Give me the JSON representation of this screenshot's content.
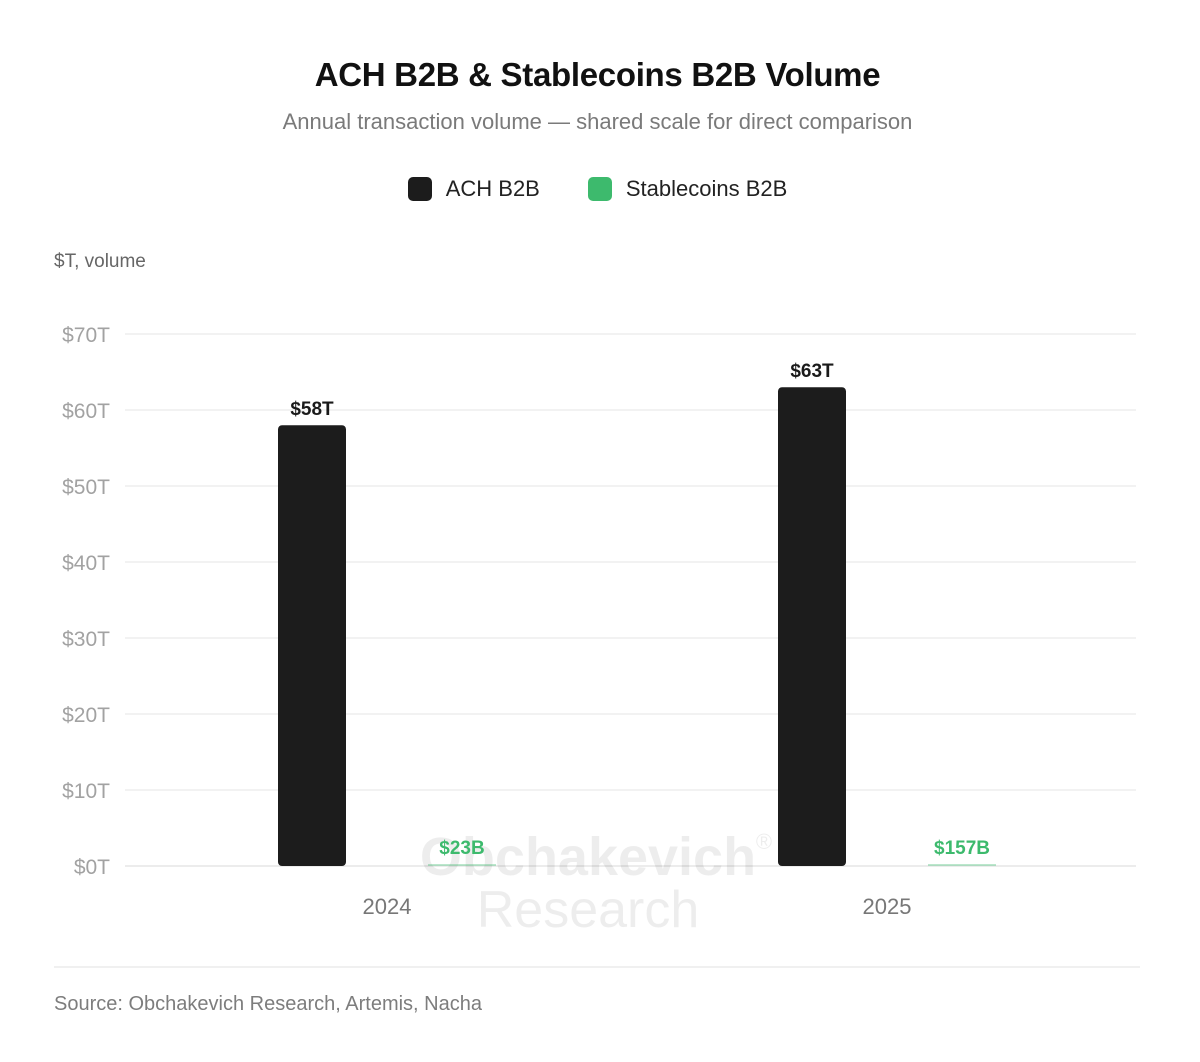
{
  "chart_data": {
    "type": "bar",
    "title": "ACH B2B & Stablecoins B2B Volume",
    "subtitle": "Annual transaction volume — shared scale for direct comparison",
    "ylabel": "$T, volume",
    "categories": [
      "2024",
      "2025"
    ],
    "series": [
      {
        "name": "ACH B2B",
        "color": "#1c1c1c",
        "values": [
          58,
          63
        ],
        "labels": [
          "$58T",
          "$63T"
        ]
      },
      {
        "name": "Stablecoins B2B",
        "color": "#3dba6d",
        "values": [
          0.023,
          0.157
        ],
        "labels": [
          "$23B",
          "$157B"
        ]
      }
    ],
    "ylim": [
      0,
      70
    ],
    "yticks": [
      "$0T",
      "$10T",
      "$20T",
      "$30T",
      "$40T",
      "$50T",
      "$60T",
      "$70T"
    ],
    "grid": true,
    "legend": "top-center"
  },
  "watermark": {
    "line1": "Obchakevich",
    "line2": "Research",
    "mark": "®"
  },
  "source": "Source: Obchakevich Research, Artemis, Nacha"
}
